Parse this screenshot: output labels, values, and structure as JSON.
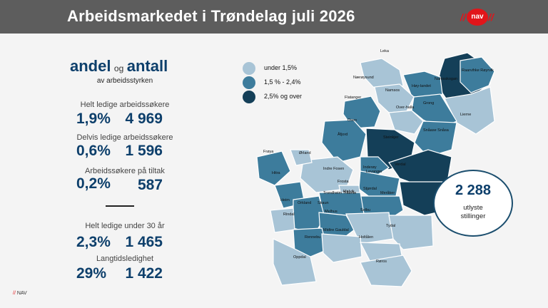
{
  "header": {
    "title": "Arbeidsmarkedet i Trøndelag juli 2026",
    "logo": {
      "text": "nav",
      "slash_left": "//",
      "slash_right": "//"
    }
  },
  "stats": {
    "heading_andel": "andel",
    "heading_og": "og",
    "heading_antall": "antall",
    "subheading": "av arbeidsstyrken",
    "items": [
      {
        "label": "Helt ledige arbeidssøkere",
        "pct": "1,9%",
        "count": "4 969"
      },
      {
        "label": "Delvis ledige arbeidssøkere",
        "pct": "0,6%",
        "count": "1 596"
      },
      {
        "label": "Arbeidssøkere på tiltak",
        "pct": "0,2%",
        "count": "587"
      },
      {
        "label": "Helt ledige under 30 år",
        "pct": "2,3%",
        "count": "1 465"
      },
      {
        "label": "Langtidsledighet",
        "pct": "29%",
        "count": "1 422"
      }
    ]
  },
  "legend": [
    {
      "label": "under 1,5%",
      "color": "#a8c4d6"
    },
    {
      "label": "1,5 % - 2,4%",
      "color": "#3d7c9c"
    },
    {
      "label": "2,5% og over",
      "color": "#143f58"
    }
  ],
  "map": {
    "colors": {
      "low": "#a8c4d6",
      "mid": "#3d7c9c",
      "high": "#143f58"
    },
    "labels": [
      "Leka",
      "Nærøysund",
      "Namsos",
      "Høy-landet",
      "Namsskogan",
      "Raarvihke Røyrvik",
      "Flatanger",
      "Grong",
      "Lierne",
      "Over-halla",
      "Osen",
      "Snåase Snåsa",
      "Åfjord",
      "Steinkjer",
      "Frøya",
      "Ørland",
      "Inderøy",
      "Verdal",
      "Hitra",
      "Indre Fosen",
      "Levanger",
      "Frosta",
      "Stjørdal",
      "Meråker",
      "Trondheim Tråante",
      "Malvik",
      "Heim",
      "Orkland",
      "Skaun",
      "Melhus",
      "Selbu",
      "Rindal",
      "Tydal",
      "Rennebu",
      "Midtre Gauldal",
      "Holtålen",
      "Oppdal",
      "Røros"
    ]
  },
  "jobs": {
    "number": "2 288",
    "line1": "utlyste",
    "line2": "stillinger"
  },
  "footer": {
    "slashes": "//",
    "text": "NAV"
  }
}
